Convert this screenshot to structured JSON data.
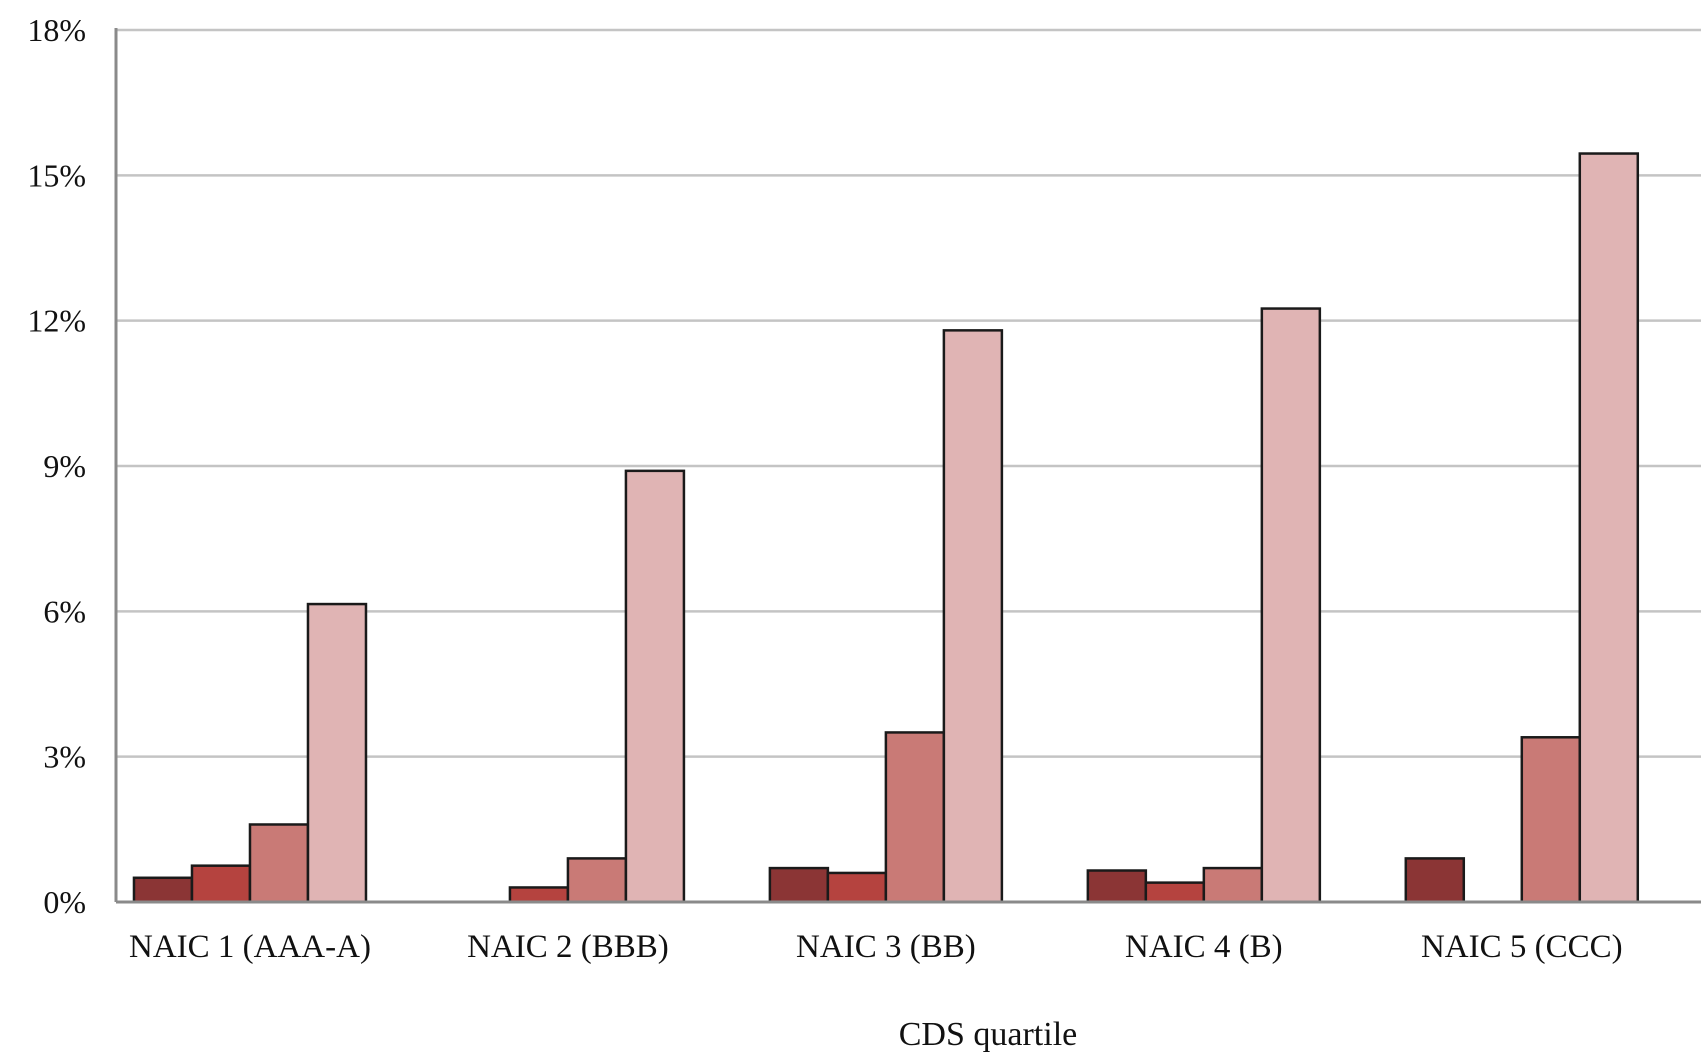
{
  "chart_data": {
    "type": "bar",
    "title": "",
    "xlabel": "CDS quartile",
    "ylabel": "",
    "ylim": [
      0,
      18
    ],
    "yticks": [
      "0%",
      "3%",
      "6%",
      "9%",
      "12%",
      "15%",
      "18%"
    ],
    "ytick_values": [
      0,
      3,
      6,
      9,
      12,
      15,
      18
    ],
    "grid": true,
    "legend": "none",
    "categories": [
      "NAIC 1 (AAA-A)",
      "NAIC 2 (BBB)",
      "NAIC 3 (BB)",
      "NAIC 4 (B)",
      "NAIC 5 (CCC)"
    ],
    "series": [
      {
        "color": "#8b3535",
        "values": [
          0.5,
          0.0,
          0.7,
          0.65,
          0.9
        ]
      },
      {
        "color": "#b5433f",
        "values": [
          0.75,
          0.3,
          0.6,
          0.4,
          0.0
        ]
      },
      {
        "color": "#c97a76",
        "values": [
          1.6,
          0.9,
          3.5,
          0.7,
          3.4
        ]
      },
      {
        "color": "#e0b4b4",
        "values": [
          6.15,
          8.9,
          11.8,
          12.25,
          15.45
        ]
      }
    ],
    "colors": {
      "gridline": "#c4c4c4",
      "axis": "#8a8a8a",
      "bar_outline": "#1a1a1a"
    }
  }
}
